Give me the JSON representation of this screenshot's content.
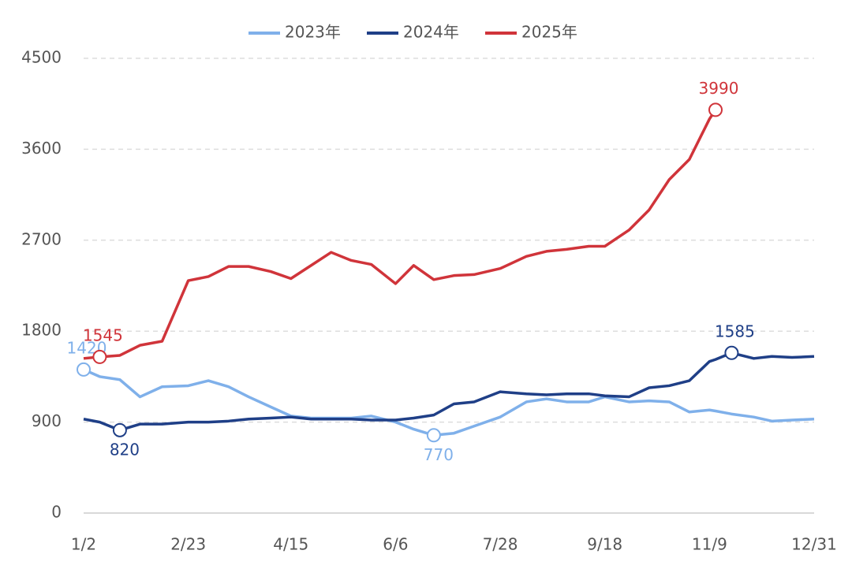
{
  "chart_data": {
    "type": "line",
    "x": [
      "1/2",
      "1/10",
      "1/20",
      "1/30",
      "2/10",
      "2/23",
      "3/5",
      "3/15",
      "3/25",
      "4/5",
      "4/15",
      "4/25",
      "5/5",
      "5/15",
      "5/25",
      "6/6",
      "6/15",
      "6/25",
      "7/5",
      "7/15",
      "7/28",
      "8/10",
      "8/20",
      "8/30",
      "9/10",
      "9/18",
      "9/30",
      "10/10",
      "10/20",
      "10/30",
      "11/9",
      "11/12",
      "11/20",
      "12/1",
      "12/10",
      "12/20",
      "12/31"
    ],
    "xticks": [
      "1/2",
      "2/23",
      "4/15",
      "6/6",
      "7/28",
      "9/18",
      "11/9",
      "12/31"
    ],
    "ylim": [
      0,
      4500
    ],
    "yticks": [
      0,
      900,
      1800,
      2700,
      3600,
      4500
    ],
    "grid": true,
    "legend": "top",
    "series": [
      {
        "name": "2023年",
        "color": "#7fb0ea",
        "values": [
          1420,
          1350,
          1320,
          1150,
          1250,
          1260,
          1310,
          1250,
          1150,
          1050,
          960,
          940,
          940,
          940,
          960,
          900,
          830,
          770,
          790,
          860,
          950,
          1100,
          1130,
          1100,
          1100,
          1150,
          1100,
          1110,
          1100,
          1000,
          1020,
          1010,
          980,
          950,
          910,
          920,
          930
        ],
        "value_labels": [
          "1420",
          null,
          null,
          null,
          null,
          null,
          null,
          null,
          null,
          null,
          null,
          null,
          null,
          null,
          null,
          null,
          null,
          "770",
          null,
          null,
          null,
          null,
          null,
          null,
          null,
          null,
          null,
          null,
          null,
          null,
          null,
          null,
          null,
          null,
          null,
          null,
          null
        ]
      },
      {
        "name": "2024年",
        "color": "#1f3f87",
        "values": [
          930,
          900,
          820,
          880,
          880,
          900,
          900,
          910,
          930,
          940,
          950,
          930,
          930,
          930,
          920,
          920,
          940,
          970,
          1080,
          1100,
          1200,
          1180,
          1170,
          1180,
          1180,
          1160,
          1150,
          1240,
          1260,
          1310,
          1500,
          1520,
          1585,
          1530,
          1550,
          1540,
          1550
        ],
        "value_labels": [
          null,
          null,
          "820",
          null,
          null,
          null,
          null,
          null,
          null,
          null,
          null,
          null,
          null,
          null,
          null,
          null,
          null,
          null,
          null,
          null,
          null,
          null,
          null,
          null,
          null,
          null,
          null,
          null,
          null,
          null,
          null,
          null,
          "1585",
          null,
          null,
          null,
          null
        ]
      },
      {
        "name": "2025年",
        "color": "#d0343a",
        "values": [
          1530,
          1545,
          1560,
          1660,
          1700,
          2300,
          2340,
          2440,
          2440,
          2390,
          2320,
          2450,
          2580,
          2500,
          2460,
          2270,
          2450,
          2310,
          2350,
          2360,
          2420,
          2540,
          2590,
          2610,
          2640,
          2640,
          2800,
          3000,
          3300,
          3500,
          3900,
          3990,
          null,
          null,
          null,
          null,
          null
        ],
        "value_labels": [
          null,
          "1545",
          null,
          null,
          null,
          null,
          null,
          null,
          null,
          null,
          null,
          null,
          null,
          null,
          null,
          null,
          null,
          null,
          null,
          null,
          null,
          null,
          null,
          null,
          null,
          null,
          null,
          null,
          null,
          null,
          null,
          "3990",
          null,
          null,
          null,
          null,
          null
        ]
      }
    ]
  }
}
